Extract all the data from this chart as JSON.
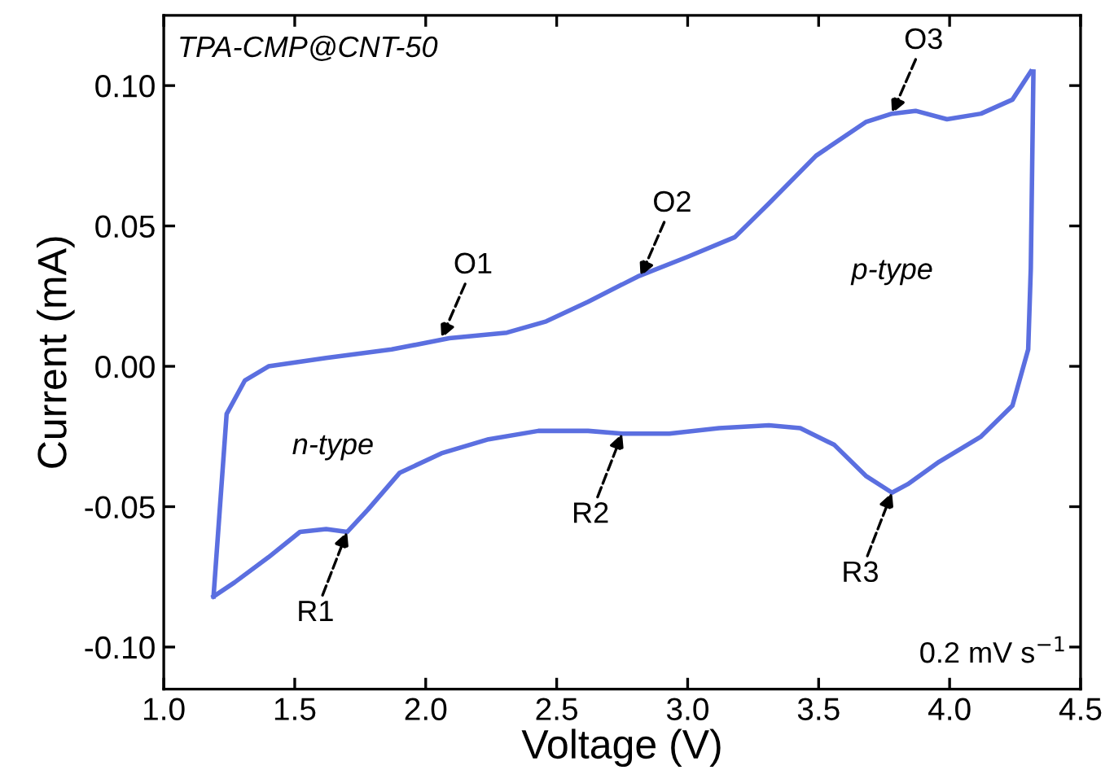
{
  "chart_data": {
    "type": "line",
    "xlabel": "Voltage (V)",
    "ylabel": "Current (mA)",
    "xlim": [
      1.0,
      4.5
    ],
    "ylim": [
      -0.115,
      0.125
    ],
    "xticks": [
      {
        "value": 1.0,
        "label": "1.0"
      },
      {
        "value": 1.5,
        "label": "1.5"
      },
      {
        "value": 2.0,
        "label": "2.0"
      },
      {
        "value": 2.5,
        "label": "2.5"
      },
      {
        "value": 3.0,
        "label": "3.0"
      },
      {
        "value": 3.5,
        "label": "3.5"
      },
      {
        "value": 4.0,
        "label": "4.0"
      },
      {
        "value": 4.5,
        "label": "4.5"
      }
    ],
    "yticks": [
      {
        "value": -0.1,
        "label": "-0.10"
      },
      {
        "value": -0.05,
        "label": "-0.05"
      },
      {
        "value": 0.0,
        "label": "0.00"
      },
      {
        "value": 0.05,
        "label": "0.05"
      },
      {
        "value": 0.1,
        "label": "0.10"
      }
    ],
    "grid": false,
    "legend": false,
    "marker": "none",
    "line_style": "solid",
    "series": [
      {
        "color": "#5b6fe0",
        "x": [
          1.19,
          1.24,
          1.31,
          1.4,
          1.62,
          1.87,
          2.09,
          2.31,
          2.46,
          2.62,
          2.81,
          3.0,
          3.18,
          3.31,
          3.49,
          3.68,
          3.78,
          3.87,
          3.99,
          4.12,
          4.24,
          4.31
        ],
        "values": [
          -0.082,
          -0.017,
          -0.005,
          0.0,
          0.003,
          0.006,
          0.01,
          0.012,
          0.016,
          0.023,
          0.032,
          0.039,
          0.046,
          0.058,
          0.075,
          0.087,
          0.09,
          0.091,
          0.088,
          0.09,
          0.095,
          0.105
        ]
      },
      {
        "color": "#5b6fe0",
        "x": [
          1.19,
          1.27,
          1.4,
          1.52,
          1.62,
          1.7,
          1.78,
          1.9,
          2.06,
          2.24,
          2.43,
          2.62,
          2.75,
          2.93,
          3.12,
          3.31,
          3.43,
          3.56,
          3.68,
          3.78,
          3.84,
          3.96,
          4.12,
          4.24,
          4.3,
          4.31,
          4.32
        ],
        "values": [
          -0.082,
          -0.077,
          -0.068,
          -0.059,
          -0.058,
          -0.059,
          -0.051,
          -0.038,
          -0.031,
          -0.026,
          -0.023,
          -0.023,
          -0.024,
          -0.024,
          -0.022,
          -0.021,
          -0.022,
          -0.028,
          -0.039,
          -0.045,
          -0.042,
          -0.034,
          -0.025,
          -0.014,
          0.006,
          0.035,
          0.105
        ]
      }
    ],
    "annotations": [
      "TPA-CMP@CNT-50",
      "n-type",
      "p-type",
      "0.2 mV s$^{−1}$",
      {
        "text": "O1",
        "x": 2.06,
        "y": 0.01
      },
      {
        "text": "O2",
        "x": 2.82,
        "y": 0.032
      },
      {
        "text": "O3",
        "x": 3.78,
        "y": 0.09
      },
      {
        "text": "R1",
        "x": 1.7,
        "y": -0.059
      },
      {
        "text": "R2",
        "x": 2.75,
        "y": -0.024
      },
      {
        "text": "R3",
        "x": 3.78,
        "y": -0.045
      }
    ]
  }
}
